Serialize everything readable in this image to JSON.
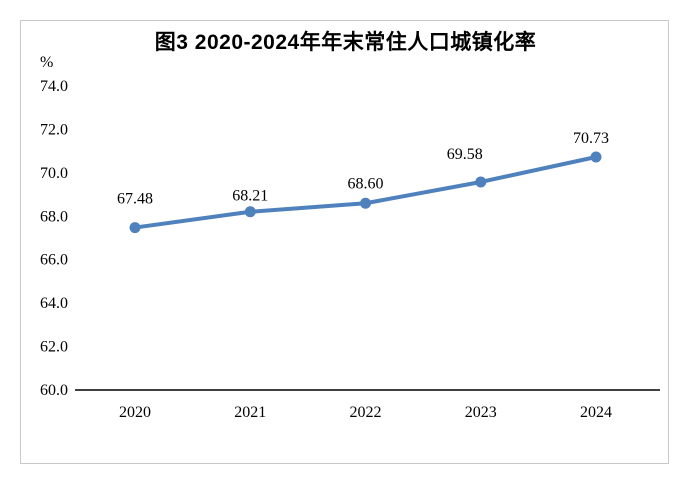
{
  "chart_data": {
    "type": "line",
    "title": "图3 2020-2024年年末常住人口城镇化率",
    "ylabel": "%",
    "xlabel": "",
    "categories": [
      "2020",
      "2021",
      "2022",
      "2023",
      "2024"
    ],
    "values": [
      67.48,
      68.21,
      68.6,
      69.58,
      70.73
    ],
    "data_labels": [
      "67.48",
      "68.21",
      "68.60",
      "69.58",
      "70.73"
    ],
    "yticks": [
      "74.0",
      "72.0",
      "70.0",
      "68.0",
      "66.0",
      "64.0",
      "62.0",
      "60.0"
    ],
    "ytick_values": [
      74.0,
      72.0,
      70.0,
      68.0,
      66.0,
      64.0,
      62.0,
      60.0
    ],
    "ylim": [
      60.0,
      74.0
    ],
    "grid": false,
    "legend_position": "none",
    "line_color": "#4F81BD",
    "axis_color": "#000000",
    "frame_color": "#c9c9c9"
  }
}
